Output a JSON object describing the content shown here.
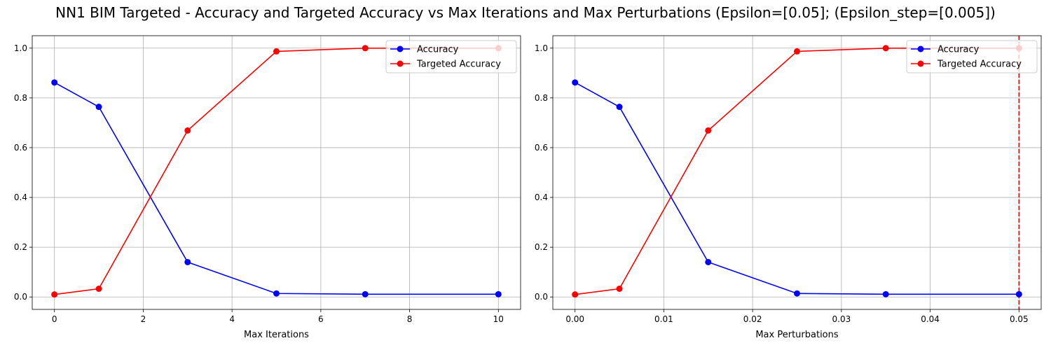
{
  "title": "NN1 BIM Targeted - Accuracy and Targeted Accuracy vs Max Iterations and Max Perturbations (Epsilon=[0.05]; (Epsilon_step=[0.005])",
  "chart_data": [
    {
      "type": "line",
      "xlabel": "Max Iterations",
      "ylabel": "",
      "x": [
        0,
        1,
        3,
        5,
        7,
        10
      ],
      "xlim": [
        -0.5,
        10.5
      ],
      "ylim": [
        -0.05,
        1.05
      ],
      "xticks": [
        0,
        2,
        4,
        6,
        8,
        10
      ],
      "xtick_labels": [
        "0",
        "2",
        "4",
        "6",
        "8",
        "10"
      ],
      "yticks": [
        0.0,
        0.2,
        0.4,
        0.6,
        0.8,
        1.0
      ],
      "ytick_labels": [
        "0.0",
        "0.2",
        "0.4",
        "0.6",
        "0.8",
        "1.0"
      ],
      "grid": true,
      "legend": "upper right",
      "series": [
        {
          "name": "Accuracy",
          "color": "#0000ff",
          "values": [
            0.862,
            0.764,
            0.14,
            0.014,
            0.011,
            0.011
          ]
        },
        {
          "name": "Targeted Accuracy",
          "color": "#ff0000",
          "values": [
            0.01,
            0.033,
            0.669,
            0.987,
            1.0,
            1.0
          ]
        }
      ]
    },
    {
      "type": "line",
      "xlabel": "Max Perturbations",
      "ylabel": "",
      "x": [
        0.0,
        0.005,
        0.015,
        0.025,
        0.035,
        0.05
      ],
      "xlim": [
        -0.0025,
        0.0525
      ],
      "ylim": [
        -0.05,
        1.05
      ],
      "xticks": [
        0.0,
        0.01,
        0.02,
        0.03,
        0.04,
        0.05
      ],
      "xtick_labels": [
        "0.00",
        "0.01",
        "0.02",
        "0.03",
        "0.04",
        "0.05"
      ],
      "yticks": [
        0.0,
        0.2,
        0.4,
        0.6,
        0.8,
        1.0
      ],
      "ytick_labels": [
        "0.0",
        "0.2",
        "0.4",
        "0.6",
        "0.8",
        "1.0"
      ],
      "grid": true,
      "legend": "upper right",
      "vline": {
        "x": 0.05,
        "color": "#ff0000",
        "style": "dashed"
      },
      "series": [
        {
          "name": "Accuracy",
          "color": "#0000ff",
          "values": [
            0.862,
            0.764,
            0.14,
            0.014,
            0.011,
            0.011
          ]
        },
        {
          "name": "Targeted Accuracy",
          "color": "#ff0000",
          "values": [
            0.01,
            0.033,
            0.669,
            0.987,
            1.0,
            1.0
          ]
        }
      ]
    }
  ]
}
